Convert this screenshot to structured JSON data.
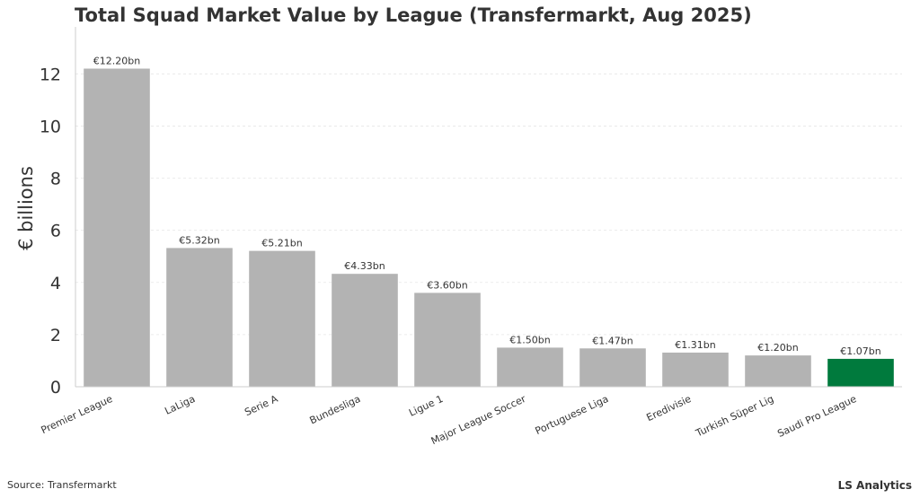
{
  "chart_data": {
    "type": "bar",
    "title": "Total Squad Market Value by League (Transfermarkt, Aug 2025)",
    "xlabel": "",
    "ylabel": "€ billions",
    "ylim": [
      0,
      13.8
    ],
    "yticks": [
      0,
      2,
      4,
      6,
      8,
      10,
      12
    ],
    "grid": true,
    "categories": [
      "Premier League",
      "LaLiga",
      "Serie A",
      "Bundesliga",
      "Ligue 1",
      "Major League Soccer",
      "Portuguese Liga",
      "Eredivisie",
      "Turkish Süper Lig",
      "Saudi Pro League"
    ],
    "values": [
      12.2,
      5.32,
      5.21,
      4.33,
      3.6,
      1.5,
      1.47,
      1.31,
      1.2,
      1.07
    ],
    "data_labels": [
      "€12.20bn",
      "€5.32bn",
      "€5.21bn",
      "€4.33bn",
      "€3.60bn",
      "€1.50bn",
      "€1.47bn",
      "€1.31bn",
      "€1.20bn",
      "€1.07bn"
    ],
    "highlight_index": 9,
    "colors": {
      "bar": "#b3b3b3",
      "highlight": "#007a3d",
      "grid": "#e6e6e6",
      "axis": "#cccccc"
    }
  },
  "footer": {
    "source": "Source: Transfermarkt",
    "brand": "LS Analytics"
  }
}
